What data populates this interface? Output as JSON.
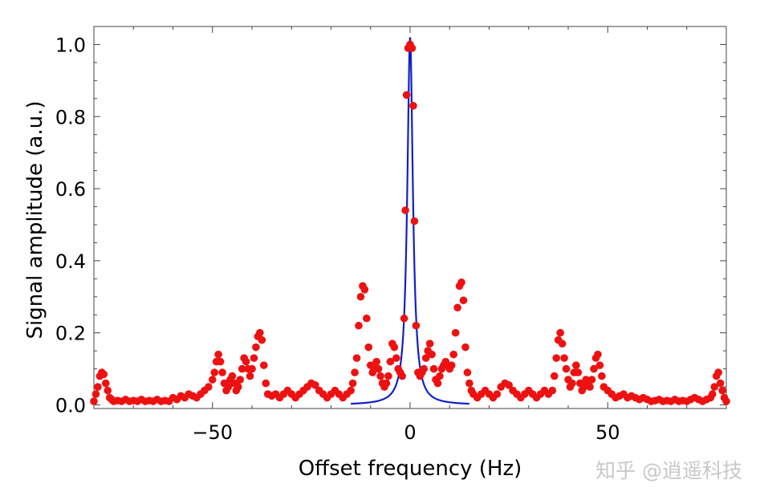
{
  "chart_data": {
    "type": "scatter",
    "xlabel": "Offset frequency (Hz)",
    "ylabel": "Signal amplitude (a.u.)",
    "xlim": [
      -80,
      80
    ],
    "ylim": [
      -0.01,
      1.05
    ],
    "xticks": [
      -50,
      0,
      50
    ],
    "xtick_labels": [
      "−50",
      "0",
      "50"
    ],
    "yticks": [
      0.0,
      0.2,
      0.4,
      0.6,
      0.8,
      1.0
    ],
    "ytick_labels": [
      "0.0",
      "0.2",
      "0.4",
      "0.6",
      "0.8",
      "1.0"
    ],
    "grid": false,
    "series": [
      {
        "kind": "points",
        "color": "#ee1111",
        "points": [
          [
            -80,
            0.01
          ],
          [
            -79.5,
            0.03
          ],
          [
            -79,
            0.05
          ],
          [
            -78.5,
            0.08
          ],
          [
            -78,
            0.09
          ],
          [
            -77.5,
            0.085
          ],
          [
            -77,
            0.06
          ],
          [
            -76.5,
            0.04
          ],
          [
            -76,
            0.02
          ],
          [
            -75.5,
            0.015
          ],
          [
            -75,
            0.01
          ],
          [
            -74,
            0.012
          ],
          [
            -73,
            0.01
          ],
          [
            -72,
            0.015
          ],
          [
            -71,
            0.01
          ],
          [
            -70,
            0.012
          ],
          [
            -69,
            0.01
          ],
          [
            -68,
            0.015
          ],
          [
            -67,
            0.01
          ],
          [
            -66,
            0.012
          ],
          [
            -65,
            0.01
          ],
          [
            -64,
            0.015
          ],
          [
            -63,
            0.01
          ],
          [
            -62,
            0.012
          ],
          [
            -61,
            0.01
          ],
          [
            -60,
            0.02
          ],
          [
            -59,
            0.015
          ],
          [
            -58,
            0.025
          ],
          [
            -57,
            0.02
          ],
          [
            -56,
            0.03
          ],
          [
            -55,
            0.025
          ],
          [
            -54,
            0.02
          ],
          [
            -53,
            0.03
          ],
          [
            -52,
            0.04
          ],
          [
            -51,
            0.05
          ],
          [
            -50,
            0.07
          ],
          [
            -49.5,
            0.09
          ],
          [
            -49,
            0.12
          ],
          [
            -48.5,
            0.14
          ],
          [
            -48,
            0.12
          ],
          [
            -47.5,
            0.09
          ],
          [
            -47,
            0.06
          ],
          [
            -46.5,
            0.04
          ],
          [
            -46,
            0.05
          ],
          [
            -45.5,
            0.07
          ],
          [
            -45,
            0.08
          ],
          [
            -44.5,
            0.06
          ],
          [
            -44,
            0.04
          ],
          [
            -43.5,
            0.05
          ],
          [
            -43,
            0.07
          ],
          [
            -42.5,
            0.1
          ],
          [
            -42,
            0.13
          ],
          [
            -41.5,
            0.12
          ],
          [
            -41,
            0.1
          ],
          [
            -40.5,
            0.08
          ],
          [
            -40,
            0.1
          ],
          [
            -39.5,
            0.13
          ],
          [
            -39,
            0.16
          ],
          [
            -38.5,
            0.19
          ],
          [
            -38,
            0.2
          ],
          [
            -37.5,
            0.18
          ],
          [
            -37,
            0.11
          ],
          [
            -36.5,
            0.06
          ],
          [
            -36,
            0.03
          ],
          [
            -35,
            0.025
          ],
          [
            -34,
            0.03
          ],
          [
            -33,
            0.02
          ],
          [
            -32,
            0.03
          ],
          [
            -31,
            0.04
          ],
          [
            -30,
            0.03
          ],
          [
            -29,
            0.02
          ],
          [
            -28,
            0.03
          ],
          [
            -27,
            0.04
          ],
          [
            -26,
            0.05
          ],
          [
            -25,
            0.06
          ],
          [
            -24,
            0.055
          ],
          [
            -23,
            0.04
          ],
          [
            -22,
            0.03
          ],
          [
            -21,
            0.02
          ],
          [
            -20,
            0.03
          ],
          [
            -19,
            0.04
          ],
          [
            -18,
            0.03
          ],
          [
            -17,
            0.02
          ],
          [
            -16,
            0.03
          ],
          [
            -15,
            0.04
          ],
          [
            -14.5,
            0.06
          ],
          [
            -14,
            0.09
          ],
          [
            -13.5,
            0.13
          ],
          [
            -13,
            0.22
          ],
          [
            -12.5,
            0.3
          ],
          [
            -12,
            0.33
          ],
          [
            -11.5,
            0.32
          ],
          [
            -11,
            0.24
          ],
          [
            -10.5,
            0.16
          ],
          [
            -10,
            0.11
          ],
          [
            -9.5,
            0.09
          ],
          [
            -9,
            0.1
          ],
          [
            -8.5,
            0.12
          ],
          [
            -8,
            0.1
          ],
          [
            -7.5,
            0.08
          ],
          [
            -7,
            0.06
          ],
          [
            -6.5,
            0.05
          ],
          [
            -6,
            0.06
          ],
          [
            -5.5,
            0.08
          ],
          [
            -5,
            0.12
          ],
          [
            -4.5,
            0.17
          ],
          [
            -4,
            0.16
          ],
          [
            -3.5,
            0.13
          ],
          [
            -3,
            0.1
          ],
          [
            -2.5,
            0.09
          ],
          [
            -2,
            0.08
          ],
          [
            -1.5,
            0.24
          ],
          [
            -1.2,
            0.54
          ],
          [
            -0.9,
            0.86
          ],
          [
            -0.5,
            0.99
          ],
          [
            0,
            1.0
          ],
          [
            0.5,
            0.99
          ],
          [
            0.8,
            0.83
          ],
          [
            1.1,
            0.51
          ],
          [
            1.5,
            0.22
          ],
          [
            2,
            0.09
          ],
          [
            2.5,
            0.08
          ],
          [
            3,
            0.09
          ],
          [
            3.5,
            0.1
          ],
          [
            4,
            0.13
          ],
          [
            4.5,
            0.15
          ],
          [
            5,
            0.17
          ],
          [
            5.5,
            0.14
          ],
          [
            6,
            0.1
          ],
          [
            6.5,
            0.07
          ],
          [
            7,
            0.06
          ],
          [
            7.5,
            0.08
          ],
          [
            8,
            0.1
          ],
          [
            8.5,
            0.11
          ],
          [
            9,
            0.12
          ],
          [
            9.5,
            0.11
          ],
          [
            10,
            0.1
          ],
          [
            10.5,
            0.11
          ],
          [
            11,
            0.14
          ],
          [
            11.5,
            0.2
          ],
          [
            12,
            0.27
          ],
          [
            12.5,
            0.33
          ],
          [
            13,
            0.34
          ],
          [
            13.5,
            0.29
          ],
          [
            14,
            0.16
          ],
          [
            14.5,
            0.09
          ],
          [
            15,
            0.06
          ],
          [
            15.5,
            0.04
          ],
          [
            16,
            0.03
          ],
          [
            17,
            0.02
          ],
          [
            18,
            0.03
          ],
          [
            19,
            0.04
          ],
          [
            20,
            0.03
          ],
          [
            21,
            0.02
          ],
          [
            22,
            0.03
          ],
          [
            23,
            0.05
          ],
          [
            24,
            0.06
          ],
          [
            25,
            0.055
          ],
          [
            26,
            0.04
          ],
          [
            27,
            0.03
          ],
          [
            28,
            0.02
          ],
          [
            29,
            0.03
          ],
          [
            30,
            0.04
          ],
          [
            31,
            0.03
          ],
          [
            32,
            0.02
          ],
          [
            33,
            0.03
          ],
          [
            34,
            0.04
          ],
          [
            35,
            0.03
          ],
          [
            36,
            0.04
          ],
          [
            36.5,
            0.08
          ],
          [
            37,
            0.13
          ],
          [
            37.5,
            0.18
          ],
          [
            38,
            0.2
          ],
          [
            38.5,
            0.17
          ],
          [
            39,
            0.13
          ],
          [
            39.5,
            0.1
          ],
          [
            40,
            0.07
          ],
          [
            40.5,
            0.05
          ],
          [
            41,
            0.06
          ],
          [
            41.5,
            0.09
          ],
          [
            42,
            0.11
          ],
          [
            42.5,
            0.09
          ],
          [
            43,
            0.06
          ],
          [
            43.5,
            0.04
          ],
          [
            44,
            0.05
          ],
          [
            44.5,
            0.07
          ],
          [
            45,
            0.06
          ],
          [
            45.5,
            0.05
          ],
          [
            46,
            0.07
          ],
          [
            46.5,
            0.1
          ],
          [
            47,
            0.13
          ],
          [
            47.5,
            0.14
          ],
          [
            48,
            0.11
          ],
          [
            48.5,
            0.08
          ],
          [
            49,
            0.05
          ],
          [
            50,
            0.04
          ],
          [
            51,
            0.03
          ],
          [
            52,
            0.02
          ],
          [
            53,
            0.025
          ],
          [
            54,
            0.03
          ],
          [
            55,
            0.02
          ],
          [
            56,
            0.025
          ],
          [
            57,
            0.02
          ],
          [
            58,
            0.015
          ],
          [
            59,
            0.02
          ],
          [
            60,
            0.015
          ],
          [
            61,
            0.01
          ],
          [
            62,
            0.012
          ],
          [
            63,
            0.015
          ],
          [
            64,
            0.01
          ],
          [
            65,
            0.012
          ],
          [
            66,
            0.01
          ],
          [
            67,
            0.015
          ],
          [
            68,
            0.01
          ],
          [
            69,
            0.012
          ],
          [
            70,
            0.01
          ],
          [
            71,
            0.015
          ],
          [
            72,
            0.02
          ],
          [
            73,
            0.015
          ],
          [
            74,
            0.01
          ],
          [
            75,
            0.015
          ],
          [
            76,
            0.02
          ],
          [
            76.5,
            0.03
          ],
          [
            77,
            0.05
          ],
          [
            77.5,
            0.08
          ],
          [
            78,
            0.09
          ],
          [
            78.5,
            0.06
          ],
          [
            79,
            0.04
          ],
          [
            79.5,
            0.02
          ],
          [
            80,
            0.01
          ]
        ]
      },
      {
        "kind": "line",
        "color": "#1020c8",
        "model": "lorentzian",
        "center": 0,
        "amplitude": 1.02,
        "hwhm": 0.85,
        "x_range": [
          -15,
          15
        ]
      }
    ]
  },
  "watermark": {
    "text": "知乎 @逍遥科技"
  }
}
